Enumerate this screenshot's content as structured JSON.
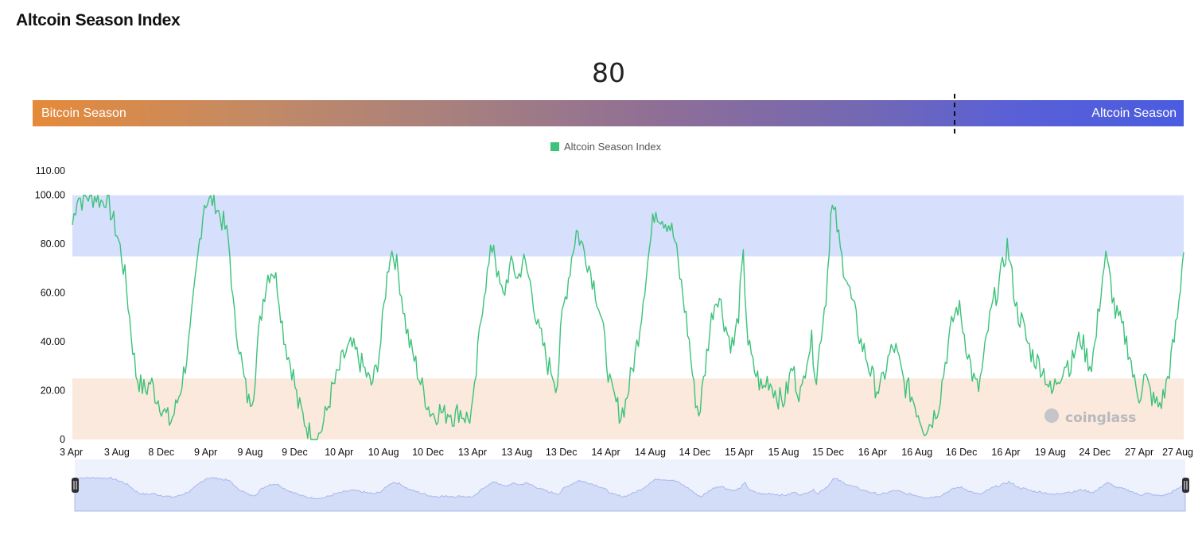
{
  "title": "Altcoin Season Index",
  "current_value": "80",
  "season_bar": {
    "left_label": "Bitcoin Season",
    "right_label": "Altcoin Season",
    "marker_value": 80
  },
  "legend": {
    "label": "Altcoin Season Index",
    "color": "#3cc27a"
  },
  "watermark": "coinglass",
  "colors": {
    "altcoin_band": "#d6dffb",
    "bitcoin_band": "#fae9dc",
    "line": "#3cc27a",
    "navigator_fill": "#d3ddf8",
    "navigator_bg": "#eef2fd"
  },
  "chart_data": {
    "type": "line",
    "title": "",
    "xlabel": "",
    "ylabel": "",
    "ylim": [
      0,
      110
    ],
    "yticks": [
      "0",
      "20.00",
      "40.00",
      "60.00",
      "80.00",
      "100.00",
      "110.00"
    ],
    "ytick_values": [
      0,
      20,
      40,
      60,
      80,
      100,
      110
    ],
    "xticks": [
      "3 Apr",
      "3 Aug",
      "8 Dec",
      "9 Apr",
      "9 Aug",
      "9 Dec",
      "10 Apr",
      "10 Aug",
      "10 Dec",
      "13 Apr",
      "13 Aug",
      "13 Dec",
      "14 Apr",
      "14 Aug",
      "14 Dec",
      "15 Apr",
      "15 Aug",
      "15 Dec",
      "16 Apr",
      "16 Aug",
      "16 Dec",
      "16 Apr",
      "19 Aug",
      "24 Dec",
      "27 Apr",
      "27 Aug"
    ],
    "bands": [
      {
        "name": "Altcoin Season",
        "from": 75,
        "to": 100
      },
      {
        "name": "Bitcoin Season",
        "from": 0,
        "to": 25
      }
    ],
    "grid": false,
    "legend_position": "top-center",
    "series": [
      {
        "name": "Altcoin Season Index",
        "values": [
          88,
          100,
          98,
          100,
          99,
          100,
          97,
          100,
          92,
          85,
          76,
          63,
          44,
          27,
          22,
          20,
          24,
          18,
          15,
          10,
          7,
          12,
          20,
          30,
          42,
          62,
          82,
          98,
          97,
          99,
          92,
          88,
          80,
          50,
          40,
          25,
          15,
          20,
          42,
          58,
          68,
          70,
          62,
          45,
          35,
          28,
          15,
          10,
          5,
          0,
          0,
          5,
          12,
          20,
          25,
          32,
          36,
          38,
          35,
          31,
          27,
          22,
          28,
          40,
          62,
          78,
          74,
          63,
          48,
          38,
          32,
          24,
          18,
          12,
          10,
          12,
          10,
          12,
          9,
          12,
          10,
          8,
          15,
          40,
          60,
          70,
          82,
          65,
          58,
          68,
          72,
          65,
          74,
          68,
          60,
          46,
          40,
          31,
          28,
          22,
          50,
          62,
          75,
          86,
          80,
          75,
          68,
          60,
          50,
          35,
          20,
          15,
          10,
          15,
          25,
          35,
          48,
          65,
          80,
          95,
          92,
          90,
          88,
          82,
          68,
          55,
          40,
          20,
          10,
          25,
          42,
          55,
          60,
          50,
          42,
          38,
          50,
          75,
          40,
          30,
          25,
          20,
          25,
          22,
          18,
          15,
          20,
          30,
          22,
          18,
          35,
          40,
          25,
          45,
          60,
          95,
          90,
          75,
          68,
          58,
          50,
          40,
          35,
          28,
          22,
          20,
          28,
          35,
          38,
          30,
          22,
          20,
          15,
          10,
          5,
          6,
          10,
          15,
          28,
          40,
          50,
          55,
          45,
          35,
          25,
          20,
          30,
          45,
          55,
          62,
          70,
          80,
          65,
          52,
          48,
          40,
          35,
          32,
          30,
          25,
          18,
          24,
          28,
          32,
          30,
          38,
          42,
          35,
          30,
          40,
          60,
          75,
          65,
          52,
          48,
          42,
          35,
          22,
          18,
          26,
          20,
          15,
          14,
          18,
          28,
          40,
          55,
          80
        ],
        "x_start": 0,
        "x_end": 1
      }
    ]
  }
}
